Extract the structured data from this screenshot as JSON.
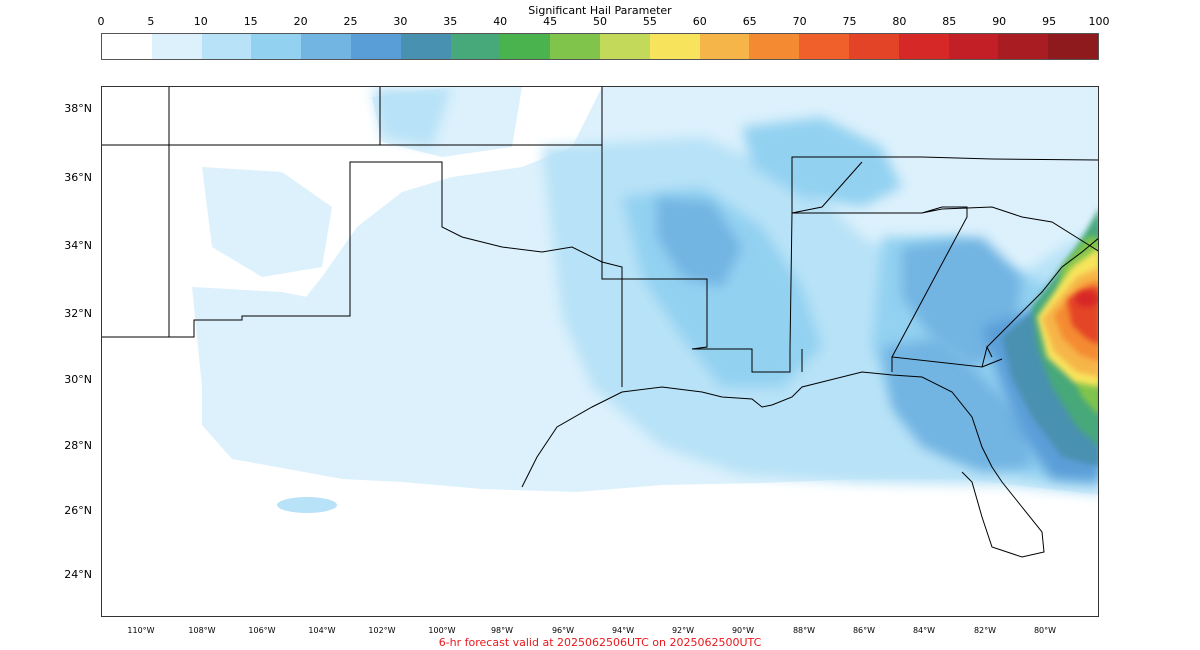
{
  "colorbar": {
    "title": "Significant Hail Parameter",
    "ticks": [
      "0",
      "5",
      "10",
      "15",
      "20",
      "25",
      "30",
      "35",
      "40",
      "45",
      "50",
      "55",
      "60",
      "65",
      "70",
      "75",
      "80",
      "85",
      "90",
      "95",
      "100"
    ],
    "colors": [
      "#ffffff",
      "#dcf1fc",
      "#b8e2f7",
      "#93d1f1",
      "#72b4e2",
      "#5a9ed8",
      "#4891b0",
      "#47a87a",
      "#4bb34e",
      "#80c44c",
      "#c2d95a",
      "#f8e45c",
      "#f6b548",
      "#f48b32",
      "#f0602a",
      "#e34427",
      "#d72828",
      "#c21f26",
      "#a81c22",
      "#8e1a1e"
    ]
  },
  "map": {
    "lat_labels": [
      "38°N",
      "36°N",
      "34°N",
      "32°N",
      "30°N",
      "28°N",
      "26°N",
      "24°N"
    ],
    "lon_labels": [
      "110°W",
      "108°W",
      "106°W",
      "104°W",
      "102°W",
      "100°W",
      "98°W",
      "96°W",
      "94°W",
      "92°W",
      "90°W",
      "88°W",
      "86°W",
      "84°W",
      "82°W",
      "80°W"
    ]
  },
  "caption": "6-hr forecast valid at 2025062506UTC on 2025062500UTC"
}
